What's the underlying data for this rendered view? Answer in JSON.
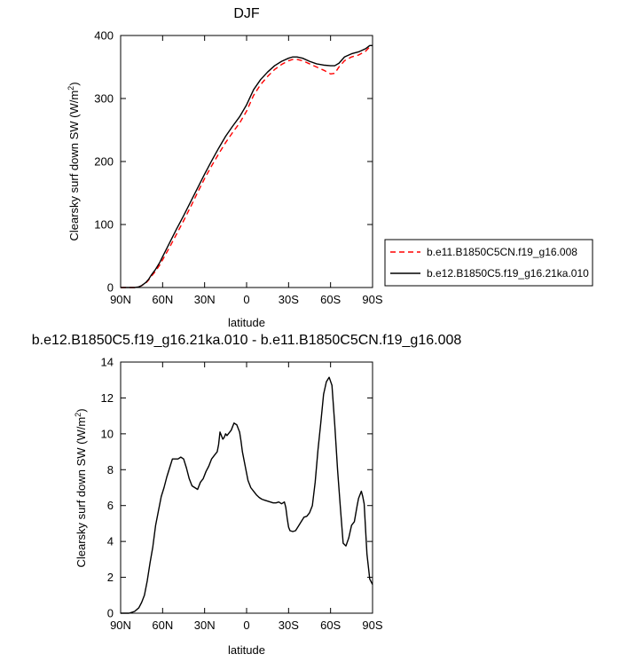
{
  "chart_data": [
    {
      "type": "line",
      "title": "DJF",
      "xlabel": "latitude",
      "ylabel": "Clearsky surf down SW (W/m",
      "ylabel_sup": "2",
      "ylabel_close": ")",
      "xlim": [
        90,
        -90
      ],
      "ylim": [
        0,
        400
      ],
      "x_ticks": [
        90,
        60,
        30,
        0,
        -30,
        -60,
        -90
      ],
      "x_tick_labels": [
        "90N",
        "60N",
        "30N",
        "0",
        "30S",
        "60S",
        "90S"
      ],
      "y_ticks": [
        0,
        100,
        200,
        300,
        400
      ],
      "y_tick_labels": [
        "0",
        "100",
        "200",
        "300",
        "400"
      ],
      "legend_position": "right",
      "series": [
        {
          "name": "b.e11.B1850C5CN.f19_g16.008",
          "color": "#ff0000",
          "dash": "dashed",
          "x": [
            90,
            85,
            80,
            77,
            75,
            72,
            70,
            68,
            65,
            62,
            60,
            55,
            50,
            45,
            40,
            35,
            30,
            25,
            20,
            15,
            10,
            5,
            0,
            -5,
            -10,
            -15,
            -20,
            -25,
            -30,
            -33,
            -36,
            -40,
            -45,
            -50,
            -55,
            -60,
            -63,
            -66,
            -70,
            -75,
            -80,
            -85,
            -88,
            -90
          ],
          "y": [
            0,
            0,
            0,
            1,
            3,
            7,
            12,
            18,
            26,
            36,
            44,
            64,
            85,
            106,
            128,
            151,
            173,
            193,
            212,
            230,
            246,
            261,
            280,
            305,
            322,
            335,
            346,
            354,
            360,
            362,
            362,
            360,
            355,
            350,
            345,
            339,
            340,
            350,
            360,
            366,
            369,
            375,
            382,
            382
          ]
        },
        {
          "name": "b.e12.B1850C5.f19_g16.21ka.010",
          "color": "#000000",
          "dash": "solid",
          "x": [
            90,
            85,
            80,
            77,
            75,
            72,
            70,
            68,
            65,
            62,
            60,
            55,
            50,
            45,
            40,
            35,
            30,
            25,
            20,
            15,
            10,
            5,
            0,
            -5,
            -10,
            -15,
            -20,
            -25,
            -30,
            -33,
            -36,
            -40,
            -45,
            -50,
            -55,
            -60,
            -63,
            -66,
            -70,
            -75,
            -80,
            -85,
            -88,
            -90
          ],
          "y": [
            0,
            0,
            0,
            1,
            3,
            8,
            13,
            20,
            29,
            40,
            49,
            71,
            93,
            114,
            136,
            158,
            180,
            201,
            221,
            240,
            256,
            271,
            290,
            314,
            330,
            342,
            352,
            359,
            364,
            366,
            366,
            364,
            359,
            355,
            353,
            352,
            352,
            356,
            366,
            371,
            374,
            379,
            384,
            384
          ]
        }
      ]
    },
    {
      "type": "line",
      "title": "b.e12.B1850C5.f19_g16.21ka.010 - b.e11.B1850C5CN.f19_g16.008",
      "xlabel": "latitude",
      "ylabel": "Clearsky surf down SW (W/m",
      "ylabel_sup": "2",
      "ylabel_close": ")",
      "xlim": [
        90,
        -90
      ],
      "ylim": [
        0,
        14
      ],
      "x_ticks": [
        90,
        60,
        30,
        0,
        -30,
        -60,
        -90
      ],
      "x_tick_labels": [
        "90N",
        "60N",
        "30N",
        "0",
        "30S",
        "60S",
        "90S"
      ],
      "y_ticks": [
        0,
        2,
        4,
        6,
        8,
        10,
        12,
        14
      ],
      "y_tick_labels": [
        "0",
        "2",
        "4",
        "6",
        "8",
        "10",
        "12",
        "14"
      ],
      "series": [
        {
          "color": "#000000",
          "dash": "solid",
          "x": [
            90,
            84,
            80,
            77,
            75,
            73,
            71,
            69,
            67,
            65,
            63,
            61,
            59,
            57,
            55,
            53,
            51,
            49,
            47,
            45,
            43,
            41,
            39,
            37,
            35,
            33,
            31,
            29,
            27,
            25,
            23,
            21,
            20,
            19,
            18,
            17,
            16,
            15,
            14,
            13,
            12,
            11,
            9,
            7,
            5,
            4,
            3,
            1,
            -1,
            -3,
            -5,
            -7,
            -9,
            -11,
            -13,
            -15,
            -17,
            -19,
            -21,
            -23,
            -25,
            -27,
            -28,
            -29,
            -30,
            -31,
            -33,
            -35,
            -37,
            -39,
            -41,
            -43,
            -45,
            -47,
            -49,
            -51,
            -53,
            -55,
            -57,
            -59,
            -61,
            -63,
            -65,
            -67,
            -69,
            -71,
            -73,
            -75,
            -77,
            -79,
            -80,
            -82,
            -83,
            -84,
            -86,
            -88,
            -90
          ],
          "y": [
            0,
            0,
            0.1,
            0.3,
            0.6,
            1.0,
            1.8,
            2.8,
            3.7,
            4.9,
            5.7,
            6.5,
            7.0,
            7.6,
            8.1,
            8.6,
            8.6,
            8.6,
            8.7,
            8.6,
            8.1,
            7.5,
            7.1,
            7.0,
            6.9,
            7.3,
            7.5,
            7.9,
            8.2,
            8.6,
            8.8,
            9.0,
            9.4,
            10.1,
            9.9,
            9.7,
            9.8,
            10.0,
            9.9,
            10.0,
            10.1,
            10.2,
            10.6,
            10.5,
            10.1,
            9.6,
            9.0,
            8.2,
            7.4,
            7.0,
            6.8,
            6.6,
            6.45,
            6.35,
            6.3,
            6.25,
            6.2,
            6.15,
            6.15,
            6.2,
            6.1,
            6.2,
            5.9,
            5.3,
            4.8,
            4.6,
            4.55,
            4.6,
            4.85,
            5.1,
            5.35,
            5.4,
            5.6,
            6.0,
            7.3,
            9.1,
            10.6,
            12.2,
            12.9,
            13.15,
            12.7,
            10.5,
            8.0,
            5.9,
            3.9,
            3.75,
            4.2,
            4.9,
            5.1,
            6.0,
            6.4,
            6.8,
            6.5,
            6.1,
            3.3,
            1.9,
            1.6
          ]
        }
      ]
    }
  ]
}
